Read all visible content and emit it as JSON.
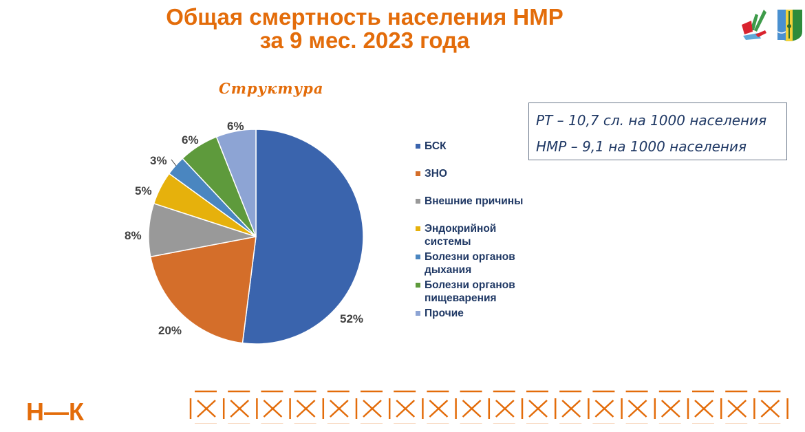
{
  "header": {
    "title_line1": "Общая смертность населения НМР",
    "title_line2": "за 9 мес. 2023 года",
    "logos": [
      "tatarstan-emblem-icon",
      "district-coat-of-arms-icon"
    ]
  },
  "chart": {
    "subtitle": "Структура"
  },
  "info_box": {
    "line1": "РТ – 10,7 сл. на 1000 населения",
    "line2": "НМР – 9,1 на 1000 населения"
  },
  "footer": {
    "brand": "Н—К",
    "ornament": "orange-x-pattern"
  },
  "colors": {
    "title": "#E36C0A",
    "legend_text": "#1F3864"
  },
  "chart_data": {
    "type": "pie",
    "title": "Общая смертность населения НМР за 9 мес. 2023 года",
    "subtitle": "Структура",
    "categories": [
      "БСК",
      "ЗНО",
      "Внешние причины",
      "Эндокрийной системы",
      "Болезни органов дыхания",
      "Болезни органов пищеварения",
      "Прочие"
    ],
    "values": [
      52,
      20,
      8,
      5,
      3,
      6,
      6
    ],
    "labels": [
      "52%",
      "20%",
      "8%",
      "5%",
      "3%",
      "6%",
      "6%"
    ],
    "colors": [
      "#3A64AD",
      "#D46E2A",
      "#999999",
      "#E6B10C",
      "#4A86C0",
      "#5E9A3C",
      "#8DA4D4"
    ],
    "legend_position": "right",
    "start_angle_deg": 0,
    "direction": "clockwise"
  }
}
